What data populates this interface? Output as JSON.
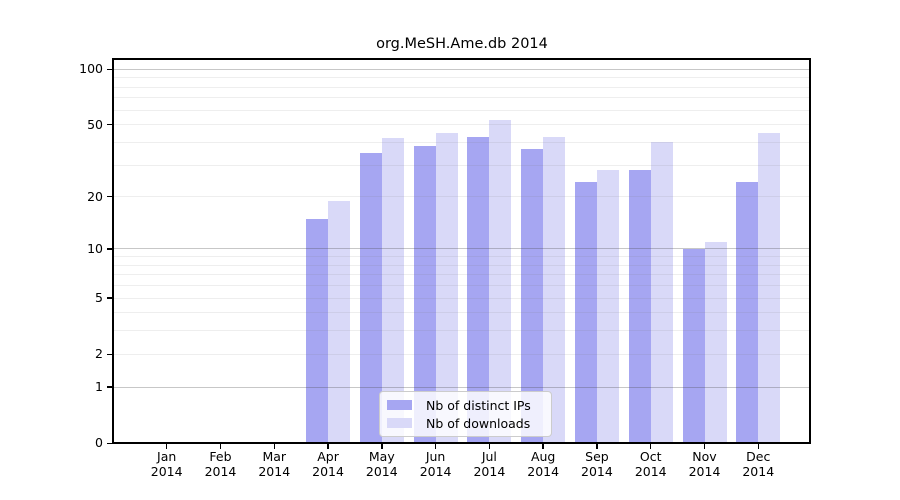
{
  "title": "org.MeSH.Ame.db 2014",
  "chart_data": {
    "type": "bar",
    "title": "org.MeSH.Ame.db 2014",
    "xlabel": "",
    "ylabel": "",
    "month_labels": [
      "Jan",
      "Feb",
      "Mar",
      "Apr",
      "May",
      "Jun",
      "Jul",
      "Aug",
      "Sep",
      "Oct",
      "Nov",
      "Dec"
    ],
    "year_label": "2014",
    "series": [
      {
        "name": "Nb of distinct IPs",
        "color": "#a6a6f2",
        "values": [
          0,
          0,
          0,
          15,
          35,
          38,
          43,
          37,
          24,
          28,
          10,
          24
        ]
      },
      {
        "name": "Nb of downloads",
        "color": "#d9d9f8",
        "values": [
          0,
          0,
          0,
          19,
          42,
          45,
          53,
          43,
          28,
          40,
          11,
          45
        ]
      }
    ],
    "y_scale": "log1p",
    "y_ticks": [
      0,
      1,
      2,
      5,
      10,
      20,
      50,
      100
    ],
    "y_tick_labels": [
      "0",
      "1",
      "2",
      "5",
      "10",
      "20",
      "50",
      "100"
    ],
    "major_gridlines": [
      1,
      10,
      100
    ],
    "minor_gridlines": [
      2,
      3,
      4,
      5,
      6,
      7,
      8,
      9,
      20,
      30,
      40,
      50,
      60,
      70,
      80,
      90
    ],
    "ylim": [
      0,
      114
    ],
    "grid": "horizontal gridlines drawn above bars",
    "legend": {
      "position": "lower center inside plot",
      "entries": [
        "Nb of distinct IPs",
        "Nb of downloads"
      ]
    }
  },
  "colors": {
    "bar_distinct_ips": "#a6a6f2",
    "bar_downloads": "#d9d9f8",
    "major_grid": "#bdbdbd",
    "minor_grid": "#e7e7e7",
    "axis": "#000000",
    "background": "#ffffff",
    "legend_border": "#cccccc"
  }
}
